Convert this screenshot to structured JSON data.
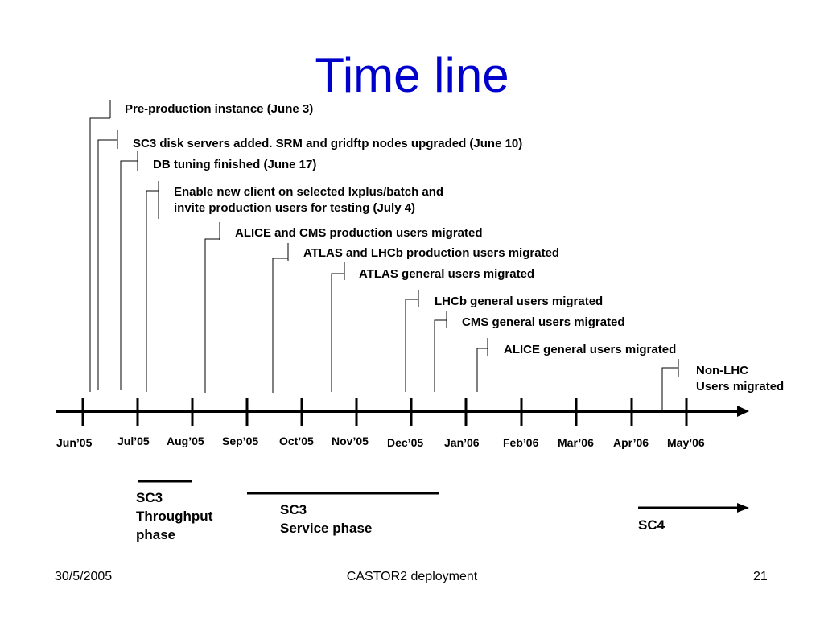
{
  "slide": {
    "title": "Time line",
    "months": [
      "Jun’05",
      "Jul’05",
      "Aug’05",
      "Sep’05",
      "Oct’05",
      "Nov’05",
      "Dec’05",
      "Jan’06",
      "Feb’06",
      "Mar’06",
      "Apr’06",
      "May’06"
    ],
    "events": [
      {
        "text": "Pre-production instance (June 3)"
      },
      {
        "text": "SC3 disk servers added. SRM and gridftp nodes upgraded (June 10)"
      },
      {
        "text": "DB tuning finished (June 17)"
      },
      {
        "line1": "Enable new client on selected lxplus/batch and",
        "line2": "invite production users for testing (July 4)"
      },
      {
        "text": "ALICE and CMS production users migrated"
      },
      {
        "text": "ATLAS and LHCb production users migrated"
      },
      {
        "text": "ATLAS general users migrated"
      },
      {
        "text": "LHCb general users migrated"
      },
      {
        "text": "CMS general users migrated"
      },
      {
        "text": "ALICE general users migrated"
      },
      {
        "line1": "Non-LHC",
        "line2": "Users migrated"
      }
    ],
    "phases": {
      "throughput": {
        "line1": "SC3",
        "line2": "Throughput",
        "line3": "phase"
      },
      "service": {
        "line1": "SC3",
        "line2": "Service phase"
      },
      "sc4": {
        "label": "SC4"
      }
    },
    "colors": {
      "title": "#0000cc",
      "lines": "#000000"
    }
  },
  "footer": {
    "date": "30/5/2005",
    "center": "CASTOR2 deployment",
    "page": "21"
  }
}
